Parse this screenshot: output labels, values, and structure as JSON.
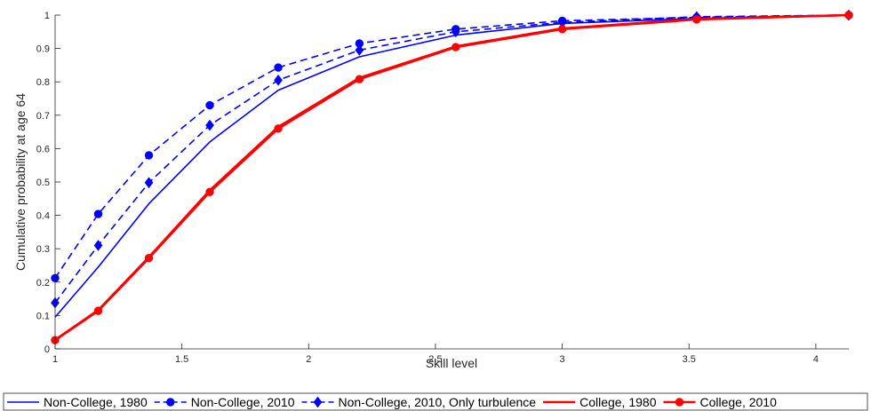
{
  "chart_data": {
    "type": "line",
    "xlabel": "Skill level",
    "ylabel": "Cumulative probability at age 64",
    "xlim": [
      1,
      4.13
    ],
    "ylim": [
      0,
      1
    ],
    "xticks": [
      "1",
      "1.5",
      "2",
      "2.5",
      "3",
      "3.5",
      "4"
    ],
    "yticks": [
      "0",
      "0.1",
      "0.2",
      "0.3",
      "0.4",
      "0.5",
      "0.6",
      "0.7",
      "0.8",
      "0.9",
      "1"
    ],
    "grid": false,
    "legend_position": "bottom",
    "x": [
      1.0,
      1.17,
      1.37,
      1.61,
      1.88,
      2.2,
      2.58,
      3.0,
      3.53,
      4.13
    ],
    "series": [
      {
        "name": "Non-College, 1980",
        "color": "#0000ff",
        "style": "solid",
        "marker": "none",
        "values": [
          0.095,
          0.245,
          0.435,
          0.62,
          0.775,
          0.875,
          0.94,
          0.975,
          0.99,
          1.0
        ]
      },
      {
        "name": "Non-College, 2010",
        "color": "#0000ff",
        "style": "dashed",
        "marker": "circle",
        "values": [
          0.212,
          0.404,
          0.58,
          0.73,
          0.843,
          0.915,
          0.958,
          0.983,
          0.993,
          1.0
        ]
      },
      {
        "name": "Non-College, 2010, Only turbulence",
        "color": "#0000ff",
        "style": "dashed",
        "marker": "diamond",
        "values": [
          0.138,
          0.31,
          0.498,
          0.67,
          0.805,
          0.895,
          0.95,
          0.978,
          0.995,
          1.0
        ]
      },
      {
        "name": "College, 1980",
        "color": "#ff0000",
        "style": "solid",
        "marker": "none",
        "values": [
          0.027,
          0.116,
          0.275,
          0.475,
          0.665,
          0.812,
          0.906,
          0.96,
          0.988,
          1.0
        ]
      },
      {
        "name": "College, 2010",
        "color": "#ff0000",
        "style": "solid",
        "marker": "circle",
        "values": [
          0.026,
          0.114,
          0.272,
          0.47,
          0.66,
          0.808,
          0.904,
          0.958,
          0.987,
          1.0
        ]
      }
    ]
  }
}
